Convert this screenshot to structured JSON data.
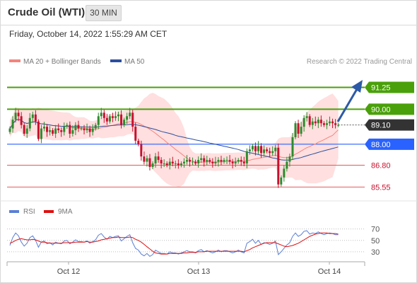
{
  "header": {
    "title": "Crude Oil (WTI)",
    "timeframe": "30 MIN"
  },
  "datetime": "Friday, October 14, 2022 1:55:29 AM CET",
  "legend": {
    "bollinger_label": "MA 20 + Bollinger Bands",
    "ma50_label": "MA 50",
    "credit": "Research © 2022 Trading Central",
    "bollinger_color": "#f4837d",
    "ma50_color": "#2c4f9e"
  },
  "rsi_legend": {
    "rsi_label": "RSI",
    "ma_label": "9MA",
    "rsi_color": "#5b7fd6",
    "ma_color": "#e01010"
  },
  "x_axis": {
    "labels": [
      "Oct 12",
      "Oct 13",
      "Oct 14"
    ]
  },
  "colors": {
    "up": "#2e8b2e",
    "down": "#c8102e",
    "resistance": "#4aa00a",
    "support": "#2962ff",
    "last": "#333333",
    "band_fill": "#ffd9d9",
    "minor_level": "#e35a5a"
  },
  "chart_data": {
    "type": "candlestick",
    "instrument": "Crude Oil (WTI)",
    "interval": "30 MIN",
    "ylim": [
      85.0,
      92.2
    ],
    "levels": [
      {
        "value": 91.25,
        "label": "91.25",
        "kind": "resistance"
      },
      {
        "value": 90.0,
        "label": "90.00",
        "kind": "resistance"
      },
      {
        "value": 89.1,
        "label": "89.10",
        "kind": "last"
      },
      {
        "value": 88.0,
        "label": "88.00",
        "kind": "support"
      },
      {
        "value": 86.8,
        "label": "86.80",
        "kind": "minor"
      },
      {
        "value": 85.55,
        "label": "85.55",
        "kind": "minor"
      }
    ],
    "close": [
      88.9,
      89.4,
      89.8,
      89.6,
      89.1,
      88.6,
      88.9,
      89.5,
      89.7,
      89.3,
      88.3,
      88.9,
      89.0,
      88.7,
      88.8,
      88.6,
      88.9,
      88.8,
      88.7,
      89.0,
      89.1,
      88.6,
      88.8,
      89.1,
      88.9,
      88.9,
      88.8,
      88.9,
      88.7,
      88.9,
      89.1,
      89.6,
      89.8,
      89.5,
      89.3,
      89.6,
      89.5,
      89.6,
      89.7,
      89.1,
      89.4,
      89.6,
      89.8,
      89.0,
      88.2,
      88.0,
      87.3,
      87.0,
      87.2,
      86.7,
      86.9,
      87.3,
      87.1,
      86.9,
      86.9,
      86.8,
      87.0,
      86.9,
      86.9,
      86.8,
      86.9,
      87.0,
      87.1,
      87.0,
      87.0,
      86.9,
      87.1,
      87.2,
      87.0,
      87.1,
      87.0,
      86.9,
      87.0,
      87.1,
      87.0,
      87.1,
      87.1,
      87.0,
      86.9,
      87.0,
      87.1,
      87.0,
      86.9,
      87.6,
      87.7,
      87.9,
      87.6,
      87.9,
      87.5,
      87.7,
      87.6,
      87.5,
      87.6,
      87.8,
      85.7,
      86.1,
      86.6,
      87.0,
      87.3,
      88.4,
      89.2,
      88.6,
      89.0,
      89.5,
      89.6,
      89.1,
      89.3,
      89.2,
      89.4,
      89.2,
      89.1,
      89.2,
      89.3,
      89.2,
      89.1,
      89.1
    ],
    "rsi": {
      "ylim": [
        15,
        82
      ],
      "ticks": [
        70,
        50,
        30
      ],
      "rsi": [
        41,
        55,
        63,
        58,
        47,
        40,
        45,
        55,
        58,
        50,
        38,
        47,
        49,
        44,
        46,
        42,
        47,
        45,
        44,
        49,
        50,
        44,
        47,
        51,
        48,
        48,
        47,
        49,
        45,
        48,
        51,
        59,
        62,
        56,
        52,
        57,
        55,
        57,
        58,
        49,
        53,
        57,
        60,
        46,
        36,
        33,
        26,
        23,
        27,
        22,
        25,
        33,
        30,
        27,
        27,
        26,
        30,
        28,
        28,
        26,
        28,
        30,
        32,
        30,
        30,
        28,
        32,
        34,
        30,
        32,
        30,
        28,
        30,
        33,
        30,
        32,
        32,
        30,
        28,
        30,
        33,
        30,
        28,
        45,
        48,
        52,
        45,
        50,
        43,
        46,
        45,
        43,
        45,
        49,
        25,
        30,
        36,
        42,
        46,
        57,
        63,
        57,
        60,
        66,
        67,
        61,
        63,
        62,
        65,
        62,
        60,
        62,
        63,
        62,
        60,
        60
      ],
      "ma": [
        45,
        47,
        50,
        52,
        53,
        52,
        51,
        51,
        52,
        51,
        49,
        47,
        47,
        46,
        45,
        45,
        45,
        45,
        45,
        46,
        46,
        46,
        46,
        47,
        47,
        47,
        47,
        48,
        47,
        47,
        48,
        49,
        51,
        52,
        53,
        54,
        55,
        55,
        56,
        55,
        55,
        55,
        56,
        55,
        52,
        50,
        47,
        43,
        39,
        35,
        31,
        28,
        27,
        26,
        26,
        26,
        27,
        27,
        27,
        27,
        27,
        28,
        28,
        29,
        29,
        29,
        30,
        30,
        30,
        31,
        31,
        31,
        31,
        31,
        31,
        31,
        31,
        31,
        31,
        31,
        31,
        31,
        30,
        32,
        34,
        37,
        39,
        41,
        43,
        45,
        46,
        46,
        46,
        46,
        44,
        42,
        40,
        39,
        40,
        41,
        43,
        45,
        48,
        51,
        54,
        57,
        59,
        61,
        62,
        63,
        63,
        63,
        62,
        62,
        62,
        61
      ]
    }
  }
}
